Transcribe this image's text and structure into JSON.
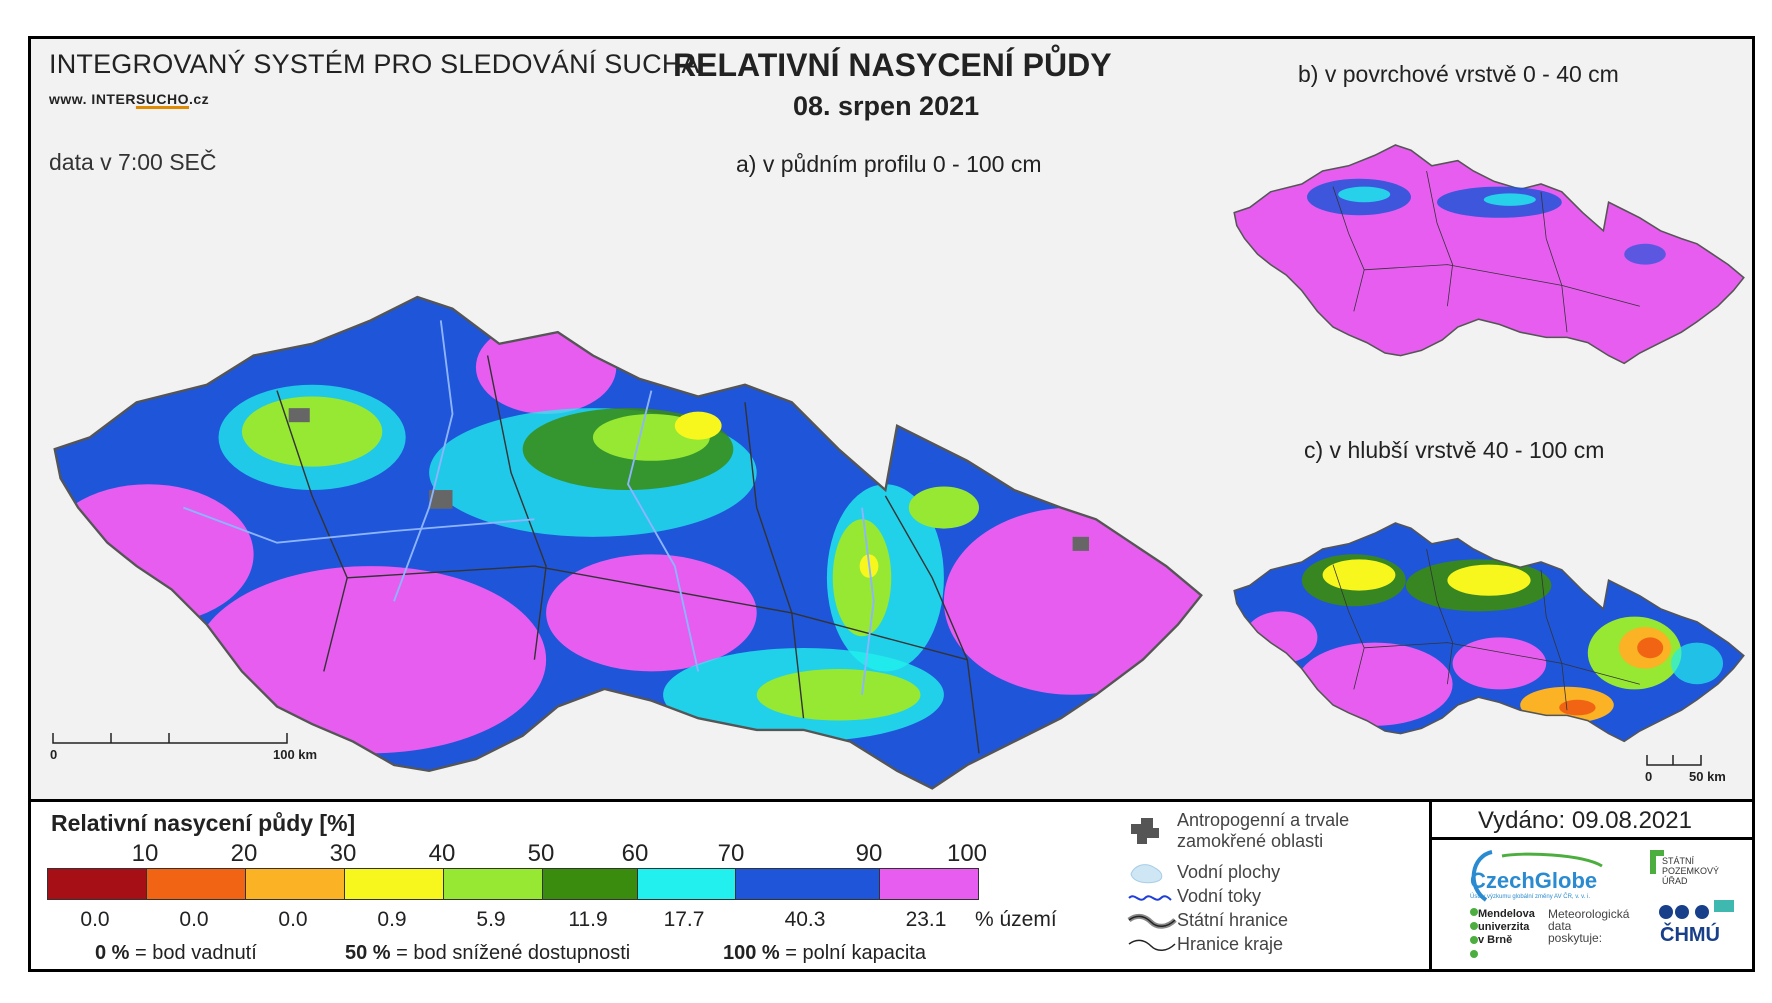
{
  "header": {
    "system_title": "INTEGROVANÝ SYSTÉM PRO SLEDOVÁNÍ SUCHA",
    "website_prefix": "www. INTER",
    "website_underlined": "SUCHO",
    "website_suffix": ".cz",
    "data_time": "data v 7:00 SEČ",
    "main_title": "RELATIVNÍ NASYCENÍ PŮDY",
    "main_date": "08. srpen 2021"
  },
  "maps": {
    "a_title": "a) v půdním profilu 0 - 100 cm",
    "b_title": "b) v povrchové vrstvě 0 - 40 cm",
    "c_title": "c) v hlubší vrstvě 40 - 100 cm",
    "scale_main": {
      "start": "0",
      "end": "100 km"
    },
    "scale_small": {
      "start": "0",
      "end": "50 km"
    }
  },
  "legend": {
    "title": "Relativní nasycení půdy [%]",
    "ticks": [
      "10",
      "20",
      "30",
      "40",
      "50",
      "60",
      "70",
      "90",
      "100"
    ],
    "classes": [
      {
        "color": "#a50f15",
        "share": "0.0"
      },
      {
        "color": "#f06414",
        "share": "0.0"
      },
      {
        "color": "#fbb224",
        "share": "0.0"
      },
      {
        "color": "#f7f71e",
        "share": "0.9"
      },
      {
        "color": "#96e832",
        "share": "5.9"
      },
      {
        "color": "#3a8c0e",
        "share": "11.9"
      },
      {
        "color": "#22f0ee",
        "share": "17.7"
      },
      {
        "color": "#1f55d8",
        "share": "40.3"
      },
      {
        "color": "#e65df0",
        "share": "23.1"
      }
    ],
    "share_unit": "% území",
    "definitions": [
      {
        "value": "0 %",
        "text": "= bod vadnutí"
      },
      {
        "value": "50 %",
        "text": "= bod snížené dostupnosti"
      },
      {
        "value": "100 %",
        "text": "= polní kapacita"
      }
    ],
    "symbols": {
      "anthropogenic": "Antropogenní a trvale zamokřené oblasti",
      "water_bodies": "Vodní plochy",
      "water_courses": "Vodní toky",
      "state_border": "Státní hranice",
      "region_border": "Hranice kraje"
    }
  },
  "issued": "Vydáno: 09.08.2021",
  "logos": {
    "czechglobe": "CzechGlobe",
    "czechglobe_sub": "Ústav výzkumu globální změny AV ČR, v. v. i.",
    "spu": "STÁTNÍ POZEMKOVÝ ÚŘAD",
    "mendel": "Mendelova univerzita v Brně",
    "meteo": "Meteorologická data poskytuje:",
    "chmu": "ČHMÚ"
  }
}
